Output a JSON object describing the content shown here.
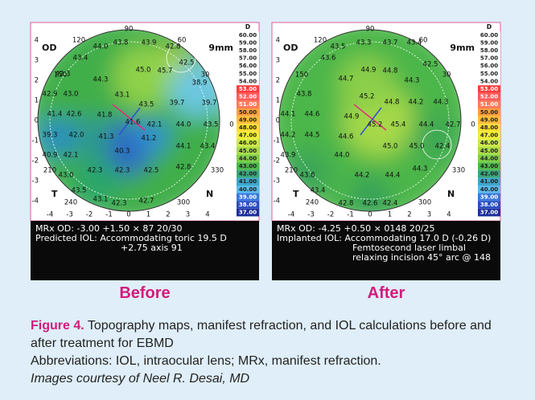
{
  "scale": {
    "unit": "D",
    "values": [
      "60.00",
      "59.00",
      "58.00",
      "57.00",
      "56.00",
      "55.00",
      "54.00",
      "53.00",
      "52.00",
      "51.00",
      "50.00",
      "49.00",
      "48.00",
      "47.00",
      "46.00",
      "45.00",
      "44.00",
      "43.00",
      "42.00",
      "41.00",
      "40.00",
      "39.00",
      "38.00",
      "37.00"
    ]
  },
  "panels": [
    {
      "eye": "OD",
      "zone": "9mm",
      "temporal": "T",
      "nasal": "N",
      "degree_labels": [
        "90",
        "120",
        "60",
        "150",
        "30",
        "0",
        "210",
        "330",
        "240",
        "300"
      ],
      "x_axis": [
        "-4",
        "-3",
        "-2",
        "-1",
        "0",
        "1",
        "2",
        "3",
        "4"
      ],
      "y_axis": [
        "4",
        "3",
        "2",
        "1",
        "0",
        "-1",
        "-2",
        "-3",
        "-4"
      ],
      "readings": [
        "43.8",
        "43.9",
        "44.0",
        "42.8",
        "43.4",
        "45.0",
        "45.7",
        "42.5",
        "42.3",
        "44.3",
        "38.9",
        "42.9",
        "43.0",
        "43.1",
        "39.7",
        "39.7",
        "43.5",
        "41.4",
        "42.6",
        "41.8",
        "41.6",
        "42.1",
        "44.0",
        "43.5",
        "39.3",
        "42.0",
        "41.3",
        "41.2",
        "40.3",
        "44.1",
        "43.4",
        "40.9",
        "42.1",
        "42.8",
        "43.0",
        "42.3",
        "42.3",
        "42.5",
        "43.5",
        "43.1",
        "42.7",
        "42.3"
      ],
      "caption": [
        "MRx OD: -3.00 +1.50 × 87 20/30",
        "Predicted IOL: Accommodating toric 19.5 D",
        "+2.75 axis 91"
      ],
      "label": "Before"
    },
    {
      "eye": "OD",
      "zone": "9mm",
      "temporal": "T",
      "nasal": "N",
      "degree_labels": [
        "90",
        "120",
        "60",
        "150",
        "30",
        "0",
        "210",
        "330",
        "240",
        "300"
      ],
      "x_axis": [
        "-4",
        "-3",
        "-2",
        "-1",
        "0",
        "1",
        "2",
        "3",
        "4"
      ],
      "y_axis": [
        "4",
        "3",
        "2",
        "1",
        "0",
        "-1",
        "-2",
        "-3",
        "-4"
      ],
      "readings": [
        "43.3",
        "43.7",
        "43.4",
        "43.5",
        "43.6",
        "44.9",
        "44.8",
        "42.5",
        "44.7",
        "44.3",
        "43.8",
        "45.2",
        "44.8",
        "44.2",
        "44.3",
        "44.1",
        "44.6",
        "44.9",
        "45.2",
        "45.4",
        "44.4",
        "42.7",
        "44.2",
        "44.5",
        "44.6",
        "45.0",
        "45.0",
        "42.4",
        "44.0",
        "43.9",
        "44.3",
        "43.8",
        "44.2",
        "44.4",
        "43.4",
        "42.8",
        "42.6",
        "42.4"
      ],
      "caption": [
        "MRx OD: -4.25 +0.50 × 0148 20/25",
        "Implanted IOL: Accommodating 17.0 D (-0.26 D)",
        "Femtosecond laser limbal",
        "relaxing incision 45° arc @ 148"
      ],
      "label": "After"
    }
  ],
  "figure_caption": {
    "label": "Figure 4.",
    "text": "Topography maps, manifest refraction, and IOL calculations before and after treatment for EBMD",
    "abbreviations": "Abbreviations: IOL, intraocular lens; MRx, manifest refraction.",
    "credit": "Images courtesy of Neel R. Desai, MD"
  }
}
